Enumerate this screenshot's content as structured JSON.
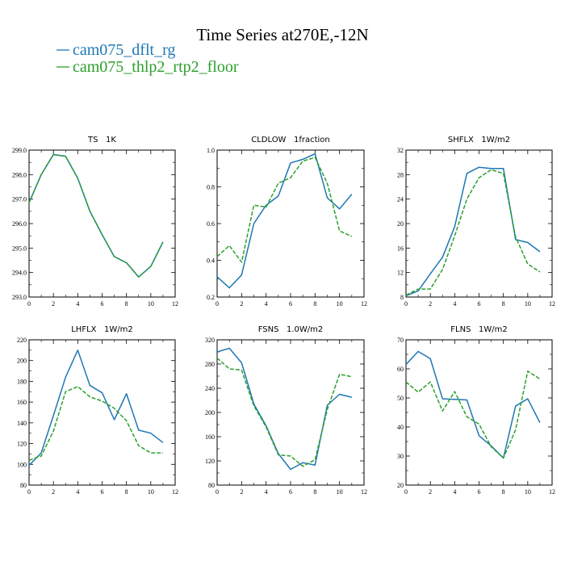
{
  "title": "Time Series at270E,-12N",
  "legend": [
    {
      "label": "cam075_dflt_rg",
      "color": "#1f77b4",
      "dash": "solid"
    },
    {
      "label": "cam075_thlp2_rtp2_floor",
      "color": "#2ca02c",
      "dash": "dashed"
    }
  ],
  "chart_data": [
    {
      "type": "line",
      "title": "TS   1K",
      "x": [
        0,
        1,
        2,
        3,
        4,
        5,
        6,
        7,
        8,
        9,
        10,
        11
      ],
      "xlim": [
        0,
        12
      ],
      "xticks": [
        "0",
        "2",
        "4",
        "6",
        "8",
        "10",
        "12"
      ],
      "ylim": [
        293.0,
        299.0
      ],
      "yticks": [
        "293.0",
        "294.0",
        "295.0",
        "296.0",
        "297.0",
        "298.0",
        "299.0"
      ],
      "series": [
        {
          "name": "cam075_dflt_rg",
          "values": [
            296.85,
            298.0,
            298.82,
            298.75,
            297.85,
            296.5,
            295.55,
            294.65,
            294.4,
            293.82,
            294.25,
            295.25
          ]
        },
        {
          "name": "cam075_thlp2_rtp2_floor",
          "values": [
            296.85,
            298.0,
            298.82,
            298.75,
            297.85,
            296.5,
            295.55,
            294.65,
            294.4,
            293.82,
            294.25,
            295.25
          ]
        }
      ]
    },
    {
      "type": "line",
      "title": "CLDLOW   1fraction",
      "x": [
        0,
        1,
        2,
        3,
        4,
        5,
        6,
        7,
        8,
        9,
        10,
        11
      ],
      "xlim": [
        0,
        12
      ],
      "xticks": [
        "0",
        "2",
        "4",
        "6",
        "8",
        "10",
        "12"
      ],
      "ylim": [
        0.2,
        1.0
      ],
      "yticks": [
        "0.2",
        "0.4",
        "0.6",
        "0.8",
        "1.0"
      ],
      "series": [
        {
          "name": "cam075_dflt_rg",
          "values": [
            0.31,
            0.25,
            0.32,
            0.6,
            0.7,
            0.75,
            0.93,
            0.95,
            0.98,
            0.74,
            0.68,
            0.76
          ]
        },
        {
          "name": "cam075_thlp2_rtp2_floor",
          "values": [
            0.42,
            0.48,
            0.39,
            0.7,
            0.69,
            0.82,
            0.85,
            0.94,
            0.96,
            0.82,
            0.56,
            0.53
          ]
        }
      ]
    },
    {
      "type": "line",
      "title": "SHFLX   1W/m2",
      "x": [
        0,
        1,
        2,
        3,
        4,
        5,
        6,
        7,
        8,
        9,
        10,
        11
      ],
      "xlim": [
        0,
        12
      ],
      "xticks": [
        "0",
        "2",
        "4",
        "6",
        "8",
        "10",
        "12"
      ],
      "ylim": [
        8,
        32
      ],
      "yticks": [
        "8",
        "12",
        "16",
        "20",
        "24",
        "28",
        "32"
      ],
      "series": [
        {
          "name": "cam075_dflt_rg",
          "values": [
            8.2,
            9.0,
            11.8,
            14.5,
            19.5,
            28.2,
            29.2,
            29.0,
            29.0,
            17.4,
            16.9,
            15.4
          ]
        },
        {
          "name": "cam075_thlp2_rtp2_floor",
          "values": [
            8.3,
            9.3,
            9.3,
            12.5,
            18.0,
            24.0,
            27.5,
            28.8,
            28.2,
            17.8,
            13.4,
            12.1
          ]
        }
      ]
    },
    {
      "type": "line",
      "title": "LHFLX   1W/m2",
      "x": [
        0,
        1,
        2,
        3,
        4,
        5,
        6,
        7,
        8,
        9,
        10,
        11
      ],
      "xlim": [
        0,
        12
      ],
      "xticks": [
        "0",
        "2",
        "4",
        "6",
        "8",
        "10",
        "12"
      ],
      "ylim": [
        80,
        220
      ],
      "yticks": [
        "80",
        "100",
        "120",
        "140",
        "160",
        "180",
        "200",
        "220"
      ],
      "series": [
        {
          "name": "cam075_dflt_rg",
          "values": [
            99,
            111,
            147,
            184,
            210,
            176,
            169,
            143,
            168,
            133,
            130,
            121
          ]
        },
        {
          "name": "cam075_thlp2_rtp2_floor",
          "values": [
            104,
            108,
            132,
            170,
            175,
            165,
            161,
            154,
            142,
            118,
            111,
            111
          ]
        }
      ]
    },
    {
      "type": "line",
      "title": "FSNS   1.0W/m2",
      "x": [
        0,
        1,
        2,
        3,
        4,
        5,
        6,
        7,
        8,
        9,
        10,
        11
      ],
      "xlim": [
        0,
        12
      ],
      "xticks": [
        "0",
        "2",
        "4",
        "6",
        "8",
        "10",
        "12"
      ],
      "ylim": [
        80,
        320
      ],
      "yticks": [
        "80",
        "120",
        "160",
        "200",
        "240",
        "280",
        "320"
      ],
      "series": [
        {
          "name": "cam075_dflt_rg",
          "values": [
            300,
            306,
            282,
            214,
            178,
            132,
            106,
            117,
            113,
            212,
            230,
            225
          ]
        },
        {
          "name": "cam075_thlp2_rtp2_floor",
          "values": [
            290,
            272,
            270,
            211,
            176,
            130,
            128,
            111,
            122,
            205,
            263,
            259
          ]
        }
      ]
    },
    {
      "type": "line",
      "title": "FLNS   1W/m2",
      "x": [
        0,
        1,
        2,
        3,
        4,
        5,
        6,
        7,
        8,
        9,
        10,
        11
      ],
      "xlim": [
        0,
        12
      ],
      "xticks": [
        "0",
        "2",
        "4",
        "6",
        "8",
        "10",
        "12"
      ],
      "ylim": [
        20,
        70
      ],
      "yticks": [
        "20",
        "30",
        "40",
        "50",
        "60",
        "70"
      ],
      "series": [
        {
          "name": "cam075_dflt_rg",
          "values": [
            61.5,
            66.0,
            63.5,
            49.7,
            49.5,
            49.3,
            37.0,
            33.5,
            29.3,
            47.2,
            49.7,
            41.5
          ]
        },
        {
          "name": "cam075_thlp2_rtp2_floor",
          "values": [
            55.5,
            52.0,
            55.5,
            45.5,
            52.2,
            43.5,
            41.0,
            33.2,
            29.3,
            39.0,
            59.2,
            56.5
          ]
        }
      ]
    }
  ]
}
